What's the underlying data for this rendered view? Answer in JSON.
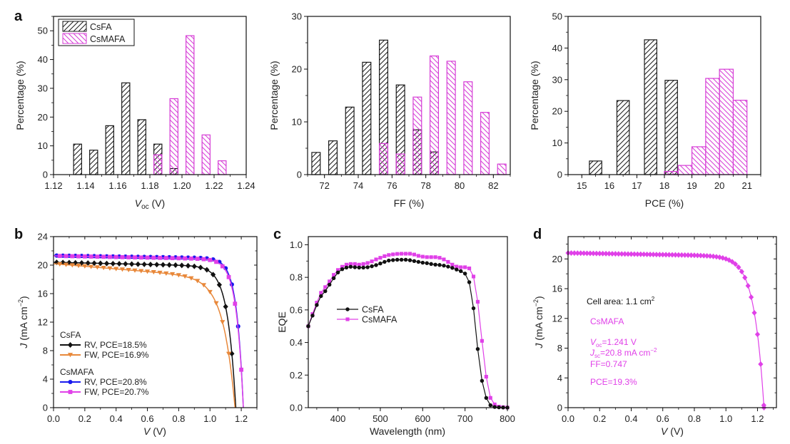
{
  "panels": {
    "a": "a",
    "b": "b",
    "c": "c",
    "d": "d"
  },
  "colors": {
    "csfa": "#1a1a1a",
    "csmafa_hist": "#d63cd6",
    "rv_csfa": "#111111",
    "fw_csfa": "#e8883a",
    "rv_csmafa": "#1a1aee",
    "fw_csmafa": "#e040e8",
    "single": "#e040e8"
  },
  "chart_data": [
    {
      "id": "voc-hist",
      "type": "bar",
      "xlabel_main": "V",
      "xlabel_sub": "oc",
      "xlabel_unit": " (V)",
      "ylabel": "Percentage (%)",
      "xlim": [
        1.12,
        1.24
      ],
      "ylim": [
        0,
        55
      ],
      "xticks": [
        1.12,
        1.14,
        1.16,
        1.18,
        1.2,
        1.22,
        1.24
      ],
      "xtick_labels": [
        "1.12",
        "1.14",
        "1.16",
        "1.18",
        "1.20",
        "1.22",
        "1.24"
      ],
      "yticks": [
        0,
        10,
        20,
        30,
        40,
        50
      ],
      "bar_width": 0.005,
      "legend": [
        "CsFA",
        "CsMAFA"
      ],
      "legend_position": "top-left",
      "series": [
        {
          "name": "CsFA",
          "x": [
            1.135,
            1.145,
            1.155,
            1.165,
            1.175,
            1.185,
            1.195
          ],
          "values": [
            10.6,
            8.5,
            17.0,
            31.9,
            19.1,
            10.6,
            2.1
          ]
        },
        {
          "name": "CsMAFA",
          "x": [
            1.185,
            1.195,
            1.205,
            1.215,
            1.225
          ],
          "values": [
            6.9,
            26.4,
            48.3,
            13.8,
            4.8
          ]
        }
      ]
    },
    {
      "id": "ff-hist",
      "type": "bar",
      "xlabel": "FF (%)",
      "ylabel": "Percentage (%)",
      "xlim": [
        71,
        83
      ],
      "ylim": [
        0,
        30
      ],
      "xticks": [
        72,
        74,
        76,
        78,
        80,
        82
      ],
      "xtick_labels": [
        "72",
        "74",
        "76",
        "78",
        "80",
        "82"
      ],
      "yticks": [
        0,
        10,
        20,
        30
      ],
      "bar_width": 0.5,
      "series": [
        {
          "name": "CsFA",
          "x": [
            71.5,
            72.5,
            73.5,
            74.5,
            75.5,
            76.5,
            77.5,
            78.5
          ],
          "values": [
            4.2,
            6.4,
            12.8,
            21.3,
            25.5,
            17.0,
            8.5,
            4.3
          ]
        },
        {
          "name": "CsMAFA",
          "x": [
            75.5,
            76.5,
            77.5,
            78.5,
            79.5,
            80.5,
            81.5,
            82.5
          ],
          "values": [
            5.9,
            3.9,
            14.7,
            22.5,
            21.5,
            17.6,
            11.8,
            2.0
          ]
        }
      ]
    },
    {
      "id": "pce-hist",
      "type": "bar",
      "xlabel": "PCE (%)",
      "ylabel": "Percentage (%)",
      "xlim": [
        14.5,
        21.5
      ],
      "ylim": [
        0,
        50
      ],
      "xticks": [
        15,
        16,
        17,
        18,
        19,
        20,
        21
      ],
      "xtick_labels": [
        "15",
        "16",
        "17",
        "18",
        "19",
        "20",
        "21"
      ],
      "yticks": [
        0,
        10,
        20,
        30,
        40,
        50
      ],
      "series": [
        {
          "name": "CsFA",
          "x": [
            15.5,
            16.5,
            17.5,
            18.25
          ],
          "width": 0.45,
          "values": [
            4.3,
            23.4,
            42.6,
            29.8
          ]
        },
        {
          "name": "CsMAFA",
          "x": [
            18.25,
            18.75,
            19.25,
            19.75,
            20.25,
            20.75
          ],
          "width": 0.5,
          "values": [
            1.0,
            2.9,
            8.8,
            30.4,
            33.3,
            23.5
          ]
        }
      ]
    },
    {
      "id": "jv-hysteresis",
      "type": "line",
      "xlabel_main": "V",
      "xlabel_unit": " (V)",
      "ylabel_main": "J",
      "ylabel_unit": " (mA cm",
      "ylabel_sup": "−2",
      "ylabel_close": ")",
      "xlim": [
        0,
        1.3
      ],
      "ylim": [
        0,
        24
      ],
      "xticks": [
        0.0,
        0.2,
        0.4,
        0.6,
        0.8,
        1.0,
        1.2
      ],
      "xtick_labels": [
        "0.0",
        "0.2",
        "0.4",
        "0.6",
        "0.8",
        "1.0",
        "1.2"
      ],
      "yticks": [
        0,
        4,
        8,
        12,
        16,
        20,
        24
      ],
      "legend_groups": [
        {
          "title": "CsFA",
          "entries": [
            "RV, PCE=18.5%",
            "FW, PCE=16.9%"
          ]
        },
        {
          "title": "CsMAFA",
          "entries": [
            "RV, PCE=20.8%",
            "FW, PCE=20.7%"
          ]
        }
      ],
      "legend_position": "bottom-left",
      "series": [
        {
          "name": "CsFA RV, PCE=18.5%",
          "marker": "diamond",
          "jsc": 20.4,
          "voc": 1.165,
          "n": 0.052,
          "slope": 0.6
        },
        {
          "name": "CsFA FW, PCE=16.9%",
          "marker": "triangle-down",
          "jsc": 20.2,
          "voc": 1.16,
          "n": 0.075,
          "slope": 2.2
        },
        {
          "name": "CsMAFA RV, PCE=20.8%",
          "marker": "circle",
          "jsc": 21.35,
          "voc": 1.213,
          "n": 0.042,
          "slope": 0.4
        },
        {
          "name": "CsMAFA FW, PCE=20.7%",
          "marker": "square",
          "jsc": 21.3,
          "voc": 1.213,
          "n": 0.044,
          "slope": 0.5
        }
      ],
      "x_step": 0.04
    },
    {
      "id": "eqe",
      "type": "line",
      "xlabel": "Wavelength (nm)",
      "ylabel": "EQE",
      "xlim": [
        330,
        800
      ],
      "ylim": [
        0,
        1.05
      ],
      "xticks": [
        400,
        500,
        600,
        700,
        800
      ],
      "xtick_labels": [
        "400",
        "500",
        "600",
        "700",
        "800"
      ],
      "yticks": [
        0.0,
        0.2,
        0.4,
        0.6,
        0.8,
        1.0
      ],
      "ytick_labels": [
        "0.0",
        "0.2",
        "0.4",
        "0.6",
        "0.8",
        "1.0"
      ],
      "legend": [
        "CsFA",
        "CsMAFA"
      ],
      "legend_position": "center-left",
      "x": [
        330,
        340,
        350,
        360,
        370,
        380,
        390,
        400,
        410,
        420,
        430,
        440,
        450,
        460,
        470,
        480,
        490,
        500,
        510,
        520,
        530,
        540,
        550,
        560,
        570,
        580,
        590,
        600,
        610,
        620,
        630,
        640,
        650,
        660,
        670,
        680,
        690,
        700,
        710,
        720,
        730,
        740,
        750,
        760,
        770,
        780,
        790,
        800
      ],
      "series": [
        {
          "name": "CsFA",
          "marker": "circle",
          "values": [
            0.5,
            0.565,
            0.63,
            0.685,
            0.715,
            0.755,
            0.795,
            0.83,
            0.85,
            0.86,
            0.865,
            0.862,
            0.86,
            0.86,
            0.862,
            0.868,
            0.875,
            0.885,
            0.895,
            0.903,
            0.906,
            0.908,
            0.908,
            0.908,
            0.905,
            0.9,
            0.895,
            0.89,
            0.887,
            0.882,
            0.878,
            0.876,
            0.872,
            0.866,
            0.858,
            0.848,
            0.838,
            0.823,
            0.77,
            0.61,
            0.36,
            0.165,
            0.06,
            0.015,
            0.004,
            0.002,
            0.001,
            0.0
          ]
        },
        {
          "name": "CsMAFA",
          "marker": "square",
          "values": [
            0.5,
            0.575,
            0.645,
            0.705,
            0.74,
            0.775,
            0.815,
            0.845,
            0.865,
            0.878,
            0.882,
            0.882,
            0.878,
            0.882,
            0.888,
            0.898,
            0.91,
            0.92,
            0.93,
            0.937,
            0.941,
            0.944,
            0.945,
            0.945,
            0.945,
            0.94,
            0.932,
            0.927,
            0.924,
            0.924,
            0.924,
            0.92,
            0.91,
            0.895,
            0.878,
            0.866,
            0.862,
            0.862,
            0.855,
            0.805,
            0.65,
            0.41,
            0.19,
            0.06,
            0.02,
            0.006,
            0.003,
            0.001
          ]
        }
      ]
    },
    {
      "id": "jv-large",
      "type": "line",
      "xlabel_main": "V",
      "xlabel_unit": " (V)",
      "ylabel_main": "J",
      "ylabel_unit": " (mA cm",
      "ylabel_sup": "−2",
      "ylabel_close": ")",
      "xlim": [
        0,
        1.32
      ],
      "ylim": [
        0,
        23
      ],
      "xticks": [
        0.0,
        0.2,
        0.4,
        0.6,
        0.8,
        1.0,
        1.2
      ],
      "xtick_labels": [
        "0.0",
        "0.2",
        "0.4",
        "0.6",
        "0.8",
        "1.0",
        "1.2"
      ],
      "yticks": [
        0,
        4,
        8,
        12,
        16,
        20
      ],
      "annotation": {
        "cell_area": "Cell area: 1.1 cm",
        "cell_area_sup": "2",
        "name": "CsMAFA",
        "voc_main": "V",
        "voc_sub": "oc",
        "voc_value": "=1.241 V",
        "jsc_main": "J",
        "jsc_sub": "sc",
        "jsc_value": "=20.8 mA cm",
        "jsc_sup": "−2",
        "ff": "FF=0.747",
        "pce": "PCE=19.3%"
      },
      "series": [
        {
          "name": "CsMAFA",
          "marker": "diamond",
          "jsc": 20.8,
          "voc": 1.241,
          "n": 0.062,
          "slope": 0.45
        }
      ],
      "x_step": 0.02
    }
  ]
}
